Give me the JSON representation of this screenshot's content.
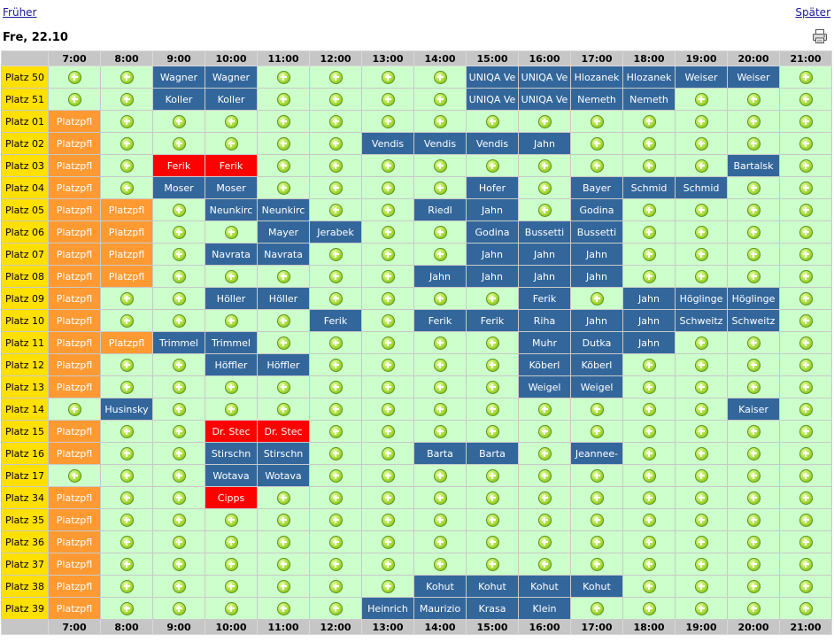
{
  "nav": {
    "prev_label": "Früher",
    "next_label": "Später"
  },
  "date_label": "Fre, 22.10",
  "icons": {
    "print": "printer-icon",
    "add": "add-booking-icon"
  },
  "colors": {
    "free": "#ccffcc",
    "blue": "#33679c",
    "red": "#ff0000",
    "orange": "#ff9a33",
    "label": "#ffe000",
    "header": "#c6c6c6"
  },
  "hours": [
    "7:00",
    "8:00",
    "9:00",
    "10:00",
    "11:00",
    "12:00",
    "13:00",
    "14:00",
    "15:00",
    "16:00",
    "17:00",
    "18:00",
    "19:00",
    "20:00",
    "21:00"
  ],
  "rows": [
    {
      "label": "Platz 50",
      "slots": [
        null,
        null,
        [
          "Wagner",
          "b"
        ],
        [
          "Wagner",
          "b"
        ],
        null,
        null,
        null,
        null,
        [
          "UNIQA Ve",
          "b"
        ],
        [
          "UNIQA Ve",
          "b"
        ],
        [
          "Hlozanek",
          "b"
        ],
        [
          "Hlozanek",
          "b"
        ],
        [
          "Weiser",
          "b"
        ],
        [
          "Weiser",
          "b"
        ],
        null
      ]
    },
    {
      "label": "Platz 51",
      "slots": [
        null,
        null,
        [
          "Koller",
          "b"
        ],
        [
          "Koller",
          "b"
        ],
        null,
        null,
        null,
        null,
        [
          "UNIQA Ve",
          "b"
        ],
        [
          "UNIQA Ve",
          "b"
        ],
        [
          "Nemeth",
          "b"
        ],
        [
          "Nemeth",
          "b"
        ],
        null,
        null,
        null
      ]
    },
    {
      "label": "Platz 01",
      "slots": [
        [
          "Platzpfl",
          "o"
        ],
        null,
        null,
        null,
        null,
        null,
        null,
        null,
        null,
        null,
        null,
        null,
        null,
        null,
        null
      ]
    },
    {
      "label": "Platz 02",
      "slots": [
        [
          "Platzpfl",
          "o"
        ],
        null,
        null,
        null,
        null,
        null,
        [
          "Vendis",
          "b"
        ],
        [
          "Vendis",
          "b"
        ],
        [
          "Vendis",
          "b"
        ],
        [
          "Jahn",
          "b"
        ],
        null,
        null,
        null,
        null,
        null
      ]
    },
    {
      "label": "Platz 03",
      "slots": [
        [
          "Platzpfl",
          "o"
        ],
        null,
        [
          "Ferik",
          "r"
        ],
        [
          "Ferik",
          "r"
        ],
        null,
        null,
        null,
        null,
        null,
        null,
        null,
        null,
        null,
        [
          "Bartalsk",
          "b"
        ],
        null
      ]
    },
    {
      "label": "Platz 04",
      "slots": [
        [
          "Platzpfl",
          "o"
        ],
        null,
        [
          "Moser",
          "b"
        ],
        [
          "Moser",
          "b"
        ],
        null,
        null,
        null,
        null,
        [
          "Hofer",
          "b"
        ],
        null,
        [
          "Bayer",
          "b"
        ],
        [
          "Schmid",
          "b"
        ],
        [
          "Schmid",
          "b"
        ],
        null,
        null
      ]
    },
    {
      "label": "Platz 05",
      "slots": [
        [
          "Platzpfl",
          "o"
        ],
        [
          "Platzpfl",
          "o"
        ],
        null,
        [
          "Neunkirc",
          "b"
        ],
        [
          "Neunkirc",
          "b"
        ],
        null,
        null,
        [
          "Riedl",
          "b"
        ],
        [
          "Jahn",
          "b"
        ],
        null,
        [
          "Godina",
          "b"
        ],
        null,
        null,
        null,
        null
      ]
    },
    {
      "label": "Platz 06",
      "slots": [
        [
          "Platzpfl",
          "o"
        ],
        [
          "Platzpfl",
          "o"
        ],
        null,
        null,
        [
          "Mayer",
          "b"
        ],
        [
          "Jerabek",
          "b"
        ],
        null,
        null,
        [
          "Godina",
          "b"
        ],
        [
          "Bussetti",
          "b"
        ],
        [
          "Bussetti",
          "b"
        ],
        null,
        null,
        null,
        null
      ]
    },
    {
      "label": "Platz 07",
      "slots": [
        [
          "Platzpfl",
          "o"
        ],
        [
          "Platzpfl",
          "o"
        ],
        null,
        [
          "Navrata",
          "b"
        ],
        [
          "Navrata",
          "b"
        ],
        null,
        null,
        null,
        [
          "Jahn",
          "b"
        ],
        [
          "Jahn",
          "b"
        ],
        [
          "Jahn",
          "b"
        ],
        null,
        null,
        null,
        null
      ]
    },
    {
      "label": "Platz 08",
      "slots": [
        [
          "Platzpfl",
          "o"
        ],
        [
          "Platzpfl",
          "o"
        ],
        null,
        null,
        null,
        null,
        null,
        [
          "Jahn",
          "b"
        ],
        [
          "Jahn",
          "b"
        ],
        [
          "Jahn",
          "b"
        ],
        [
          "Jahn",
          "b"
        ],
        null,
        null,
        null,
        null
      ]
    },
    {
      "label": "Platz 09",
      "slots": [
        [
          "Platzpfl",
          "o"
        ],
        null,
        null,
        [
          "Höller",
          "b"
        ],
        [
          "Höller",
          "b"
        ],
        null,
        null,
        null,
        null,
        [
          "Ferik",
          "b"
        ],
        null,
        [
          "Jahn",
          "b"
        ],
        [
          "Höglinge",
          "b"
        ],
        [
          "Höglinge",
          "b"
        ],
        null
      ]
    },
    {
      "label": "Platz 10",
      "slots": [
        [
          "Platzpfl",
          "o"
        ],
        null,
        null,
        null,
        null,
        [
          "Ferik",
          "b"
        ],
        null,
        [
          "Ferik",
          "b"
        ],
        [
          "Ferik",
          "b"
        ],
        [
          "Riha",
          "b"
        ],
        [
          "Jahn",
          "b"
        ],
        [
          "Jahn",
          "b"
        ],
        [
          "Schweitz",
          "b"
        ],
        [
          "Schweitz",
          "b"
        ],
        null
      ]
    },
    {
      "label": "Platz 11",
      "slots": [
        [
          "Platzpfl",
          "o"
        ],
        [
          "Platzpfl",
          "o"
        ],
        [
          "Trimmel",
          "b"
        ],
        [
          "Trimmel",
          "b"
        ],
        null,
        null,
        null,
        null,
        null,
        [
          "Muhr",
          "b"
        ],
        [
          "Dutka",
          "b"
        ],
        [
          "Jahn",
          "b"
        ],
        null,
        null,
        null
      ]
    },
    {
      "label": "Platz 12",
      "slots": [
        [
          "Platzpfl",
          "o"
        ],
        null,
        null,
        [
          "Höffler",
          "b"
        ],
        [
          "Höffler",
          "b"
        ],
        null,
        null,
        null,
        null,
        [
          "Köberl",
          "b"
        ],
        [
          "Köberl",
          "b"
        ],
        null,
        null,
        null,
        null
      ]
    },
    {
      "label": "Platz 13",
      "slots": [
        [
          "Platzpfl",
          "o"
        ],
        null,
        null,
        null,
        null,
        null,
        null,
        null,
        null,
        [
          "Weigel",
          "b"
        ],
        [
          "Weigel",
          "b"
        ],
        null,
        null,
        null,
        null
      ]
    },
    {
      "label": "Platz 14",
      "slots": [
        null,
        [
          "Husinsky",
          "b"
        ],
        null,
        null,
        null,
        null,
        null,
        null,
        null,
        null,
        null,
        null,
        null,
        [
          "Kaiser",
          "b"
        ],
        null
      ]
    },
    {
      "label": "Platz 15",
      "slots": [
        [
          "Platzpfl",
          "o"
        ],
        null,
        null,
        [
          "Dr. Stec",
          "r"
        ],
        [
          "Dr. Stec",
          "r"
        ],
        null,
        null,
        null,
        null,
        null,
        null,
        null,
        null,
        null,
        null
      ]
    },
    {
      "label": "Platz 16",
      "slots": [
        [
          "Platzpfl",
          "o"
        ],
        null,
        null,
        [
          "Stirschn",
          "b"
        ],
        [
          "Stirschn",
          "b"
        ],
        null,
        null,
        [
          "Barta",
          "b"
        ],
        [
          "Barta",
          "b"
        ],
        null,
        [
          "Jeannee-",
          "b"
        ],
        null,
        null,
        null,
        null
      ]
    },
    {
      "label": "Platz 17",
      "slots": [
        null,
        null,
        null,
        [
          "Wotava",
          "b"
        ],
        [
          "Wotava",
          "b"
        ],
        null,
        null,
        null,
        null,
        null,
        null,
        null,
        null,
        null,
        null
      ]
    },
    {
      "label": "Platz 34",
      "slots": [
        [
          "Platzpfl",
          "o"
        ],
        null,
        null,
        [
          "Cipps",
          "r"
        ],
        null,
        null,
        null,
        null,
        null,
        null,
        null,
        null,
        null,
        null,
        null
      ]
    },
    {
      "label": "Platz 35",
      "slots": [
        [
          "Platzpfl",
          "o"
        ],
        null,
        null,
        null,
        null,
        null,
        null,
        null,
        null,
        null,
        null,
        null,
        null,
        null,
        null
      ]
    },
    {
      "label": "Platz 36",
      "slots": [
        [
          "Platzpfl",
          "o"
        ],
        null,
        null,
        null,
        null,
        null,
        null,
        null,
        null,
        null,
        null,
        null,
        null,
        null,
        null
      ]
    },
    {
      "label": "Platz 37",
      "slots": [
        [
          "Platzpfl",
          "o"
        ],
        null,
        null,
        null,
        null,
        null,
        null,
        null,
        null,
        null,
        null,
        null,
        null,
        null,
        null
      ]
    },
    {
      "label": "Platz 38",
      "slots": [
        [
          "Platzpfl",
          "o"
        ],
        null,
        null,
        null,
        null,
        null,
        null,
        [
          "Kohut",
          "b"
        ],
        [
          "Kohut",
          "b"
        ],
        [
          "Kohut",
          "b"
        ],
        [
          "Kohut",
          "b"
        ],
        null,
        null,
        null,
        null
      ]
    },
    {
      "label": "Platz 39",
      "slots": [
        [
          "Platzpfl",
          "o"
        ],
        null,
        null,
        null,
        null,
        null,
        [
          "Heinrich",
          "b"
        ],
        [
          "Maurizio",
          "b"
        ],
        [
          "Krasa",
          "b"
        ],
        [
          "Klein",
          "b"
        ],
        null,
        null,
        null,
        null,
        null
      ]
    }
  ]
}
